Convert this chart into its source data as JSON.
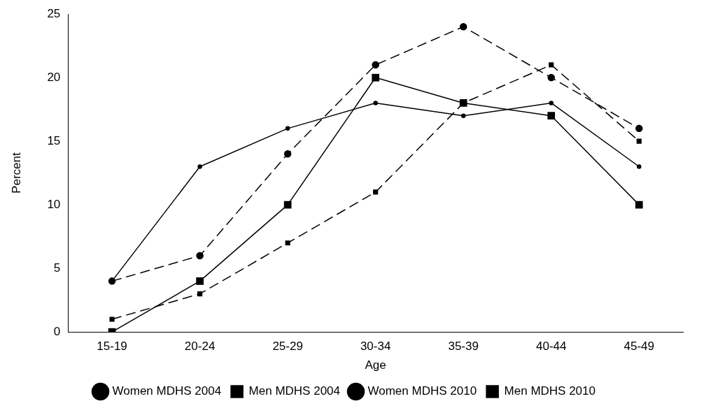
{
  "chart_data": {
    "type": "line",
    "xlabel": "Age",
    "ylabel": "Percent",
    "categories": [
      "15-19",
      "20-24",
      "25-29",
      "30-34",
      "35-39",
      "40-44",
      "45-49"
    ],
    "ylim": [
      0,
      25
    ],
    "yticks": [
      0,
      5,
      10,
      15,
      20,
      25
    ],
    "grid": false,
    "legend": "bottom",
    "series": [
      {
        "name": "Women MDHS 2004",
        "color": "#000000",
        "marker": "circle",
        "line_style": "solid",
        "values": [
          4,
          13,
          16,
          18,
          17,
          18,
          13
        ]
      },
      {
        "name": "Men MDHS 2004",
        "color": "#000000",
        "marker": "square",
        "line_style": "solid",
        "values": [
          0,
          4,
          10,
          20,
          18,
          17,
          10
        ]
      },
      {
        "name": "Women MDHS 2010",
        "color": "#000000",
        "marker": "circle",
        "line_style": "dashed",
        "values": [
          4,
          6,
          14,
          21,
          24,
          20,
          16
        ]
      },
      {
        "name": "Men MDHS 2010",
        "color": "#000000",
        "marker": "square",
        "line_style": "dashed",
        "values": [
          1,
          3,
          7,
          11,
          18,
          21,
          15
        ]
      }
    ]
  }
}
